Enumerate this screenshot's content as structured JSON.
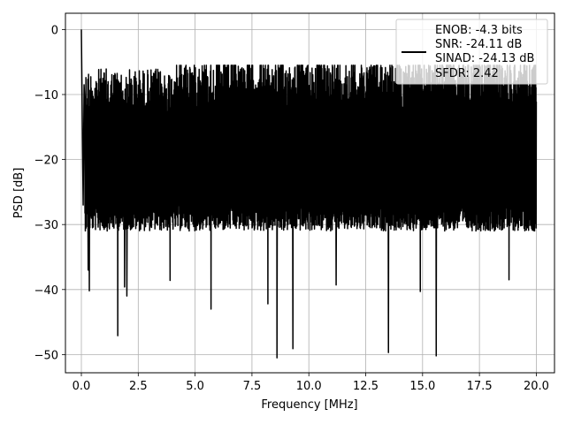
{
  "chart_data": {
    "type": "line",
    "xlabel": "Frequency [MHz]",
    "ylabel": "PSD [dB]",
    "xlim": [
      -0.7,
      20.8
    ],
    "ylim": [
      -52.8,
      2.5
    ],
    "xticks": [
      0.0,
      2.5,
      5.0,
      7.5,
      10.0,
      12.5,
      15.0,
      17.5,
      20.0
    ],
    "xtick_labels": [
      "0.0",
      "2.5",
      "5.0",
      "7.5",
      "10.0",
      "12.5",
      "15.0",
      "17.5",
      "20.0"
    ],
    "yticks": [
      0,
      -10,
      -20,
      -30,
      -40,
      -50
    ],
    "ytick_labels": [
      "0",
      "−10",
      "−20",
      "−30",
      "−40",
      "−50"
    ],
    "grid": true,
    "legend_position": "upper-right",
    "legend_entries": [
      "ENOB: -4.3 bits",
      "SNR: -24.11 dB",
      "SINAD: -24.13 dB",
      "SFDR: 2.42"
    ],
    "series": [
      {
        "color": "#000000",
        "x_range": [
          0,
          20
        ],
        "noise_band_db": [
          -27,
          -6
        ],
        "noise_floor_db_approx": -17,
        "peaks": [
          {
            "x": 0.0,
            "y": 0.0
          },
          {
            "x": 0.08,
            "y": -27.0
          },
          {
            "x": 0.12,
            "y": -8.5
          }
        ],
        "notches": [
          {
            "x": 0.3,
            "y": -37.0
          },
          {
            "x": 0.35,
            "y": -40.2
          },
          {
            "x": 1.6,
            "y": -47.1
          },
          {
            "x": 1.9,
            "y": -39.6
          },
          {
            "x": 2.0,
            "y": -41.0
          },
          {
            "x": 3.9,
            "y": -38.6
          },
          {
            "x": 5.7,
            "y": -43.0
          },
          {
            "x": 8.2,
            "y": -42.2
          },
          {
            "x": 8.6,
            "y": -50.5
          },
          {
            "x": 9.3,
            "y": -49.1
          },
          {
            "x": 11.2,
            "y": -39.3
          },
          {
            "x": 13.5,
            "y": -49.7
          },
          {
            "x": 14.9,
            "y": -40.3
          },
          {
            "x": 15.6,
            "y": -50.2
          },
          {
            "x": 18.8,
            "y": -38.5
          }
        ]
      }
    ]
  }
}
